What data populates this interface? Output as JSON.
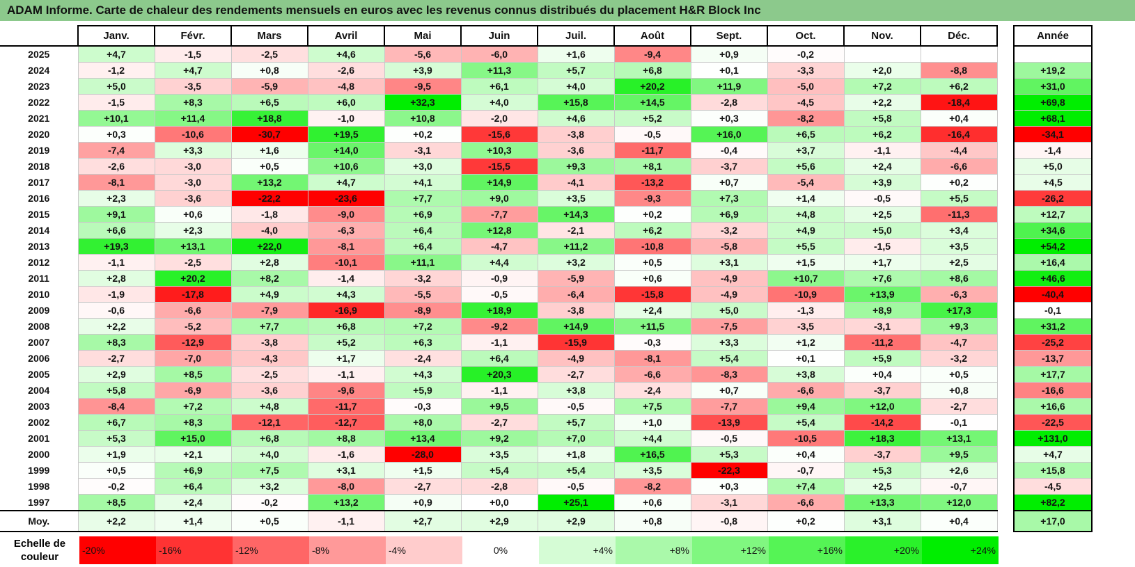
{
  "title": "ADAM Informe. Carte de chaleur des rendements mensuels en euros avec les revenus connus distribués du placement H&R Block Inc",
  "months": [
    "Janv.",
    "Févr.",
    "Mars",
    "Avril",
    "Mai",
    "Juin",
    "Juil.",
    "Août",
    "Sept.",
    "Oct.",
    "Nov.",
    "Déc."
  ],
  "year_header": "Année",
  "rows": [
    {
      "year": "2025",
      "m": [
        "+4,7",
        "-1,5",
        "-2,5",
        "+4,6",
        "-5,6",
        "-6,0",
        "+1,6",
        "-9,4",
        "+0,9",
        "-0,2",
        "",
        ""
      ],
      "total": ""
    },
    {
      "year": "2024",
      "m": [
        "-1,2",
        "+4,7",
        "+0,8",
        "-2,6",
        "+3,9",
        "+11,3",
        "+5,7",
        "+6,8",
        "+0,1",
        "-3,3",
        "+2,0",
        "-8,8"
      ],
      "total": "+19,2"
    },
    {
      "year": "2023",
      "m": [
        "+5,0",
        "-3,5",
        "-5,9",
        "-4,8",
        "-9,5",
        "+6,1",
        "+4,0",
        "+20,2",
        "+11,9",
        "-5,0",
        "+7,2",
        "+6,2"
      ],
      "total": "+31,0"
    },
    {
      "year": "2022",
      "m": [
        "-1,5",
        "+8,3",
        "+6,5",
        "+6,0",
        "+32,3",
        "+4,0",
        "+15,8",
        "+14,5",
        "-2,8",
        "-4,5",
        "+2,2",
        "-18,4"
      ],
      "total": "+69,8"
    },
    {
      "year": "2021",
      "m": [
        "+10,1",
        "+11,4",
        "+18,8",
        "-1,0",
        "+10,8",
        "-2,0",
        "+4,6",
        "+5,2",
        "+0,3",
        "-8,2",
        "+5,8",
        "+0,4"
      ],
      "total": "+68,1"
    },
    {
      "year": "2020",
      "m": [
        "+0,3",
        "-10,6",
        "-30,7",
        "+19,5",
        "+0,2",
        "-15,6",
        "-3,8",
        "-0,5",
        "+16,0",
        "+6,5",
        "+6,2",
        "-16,4"
      ],
      "total": "-34,1"
    },
    {
      "year": "2019",
      "m": [
        "-7,4",
        "+3,3",
        "+1,6",
        "+14,0",
        "-3,1",
        "+10,3",
        "-3,6",
        "-11,7",
        "-0,4",
        "+3,7",
        "-1,1",
        "-4,4"
      ],
      "total": "-1,4"
    },
    {
      "year": "2018",
      "m": [
        "-2,6",
        "-3,0",
        "+0,5",
        "+10,6",
        "+3,0",
        "-15,5",
        "+9,3",
        "+8,1",
        "-3,7",
        "+5,6",
        "+2,4",
        "-6,6"
      ],
      "total": "+5,0"
    },
    {
      "year": "2017",
      "m": [
        "-8,1",
        "-3,0",
        "+13,2",
        "+4,7",
        "+4,1",
        "+14,9",
        "-4,1",
        "-13,2",
        "+0,7",
        "-5,4",
        "+3,9",
        "+0,2"
      ],
      "total": "+4,5"
    },
    {
      "year": "2016",
      "m": [
        "+2,3",
        "-3,6",
        "-22,2",
        "-23,6",
        "+7,7",
        "+9,0",
        "+3,5",
        "-9,3",
        "+7,3",
        "+1,4",
        "-0,5",
        "+5,5"
      ],
      "total": "-26,2"
    },
    {
      "year": "2015",
      "m": [
        "+9,1",
        "+0,6",
        "-1,8",
        "-9,0",
        "+6,9",
        "-7,7",
        "+14,3",
        "+0,2",
        "+6,9",
        "+4,8",
        "+2,5",
        "-11,3"
      ],
      "total": "+12,7"
    },
    {
      "year": "2014",
      "m": [
        "+6,6",
        "+2,3",
        "-4,0",
        "-6,3",
        "+6,4",
        "+12,8",
        "-2,1",
        "+6,2",
        "-3,2",
        "+4,9",
        "+5,0",
        "+3,4"
      ],
      "total": "+34,6"
    },
    {
      "year": "2013",
      "m": [
        "+19,3",
        "+13,1",
        "+22,0",
        "-8,1",
        "+6,4",
        "-4,7",
        "+11,2",
        "-10,8",
        "-5,8",
        "+5,5",
        "-1,5",
        "+3,5"
      ],
      "total": "+54,2"
    },
    {
      "year": "2012",
      "m": [
        "-1,1",
        "-2,5",
        "+2,8",
        "-10,1",
        "+11,1",
        "+4,4",
        "+3,2",
        "+0,5",
        "+3,1",
        "+1,5",
        "+1,7",
        "+2,5"
      ],
      "total": "+16,4"
    },
    {
      "year": "2011",
      "m": [
        "+2,8",
        "+20,2",
        "+8,2",
        "-1,4",
        "-3,2",
        "-0,9",
        "-5,9",
        "+0,6",
        "-4,9",
        "+10,7",
        "+7,6",
        "+8,6"
      ],
      "total": "+46,6"
    },
    {
      "year": "2010",
      "m": [
        "-1,9",
        "-17,8",
        "+4,9",
        "+4,3",
        "-5,5",
        "-0,5",
        "-6,4",
        "-15,8",
        "-4,9",
        "-10,9",
        "+13,9",
        "-6,3"
      ],
      "total": "-40,4"
    },
    {
      "year": "2009",
      "m": [
        "-0,6",
        "-6,6",
        "-7,9",
        "-16,9",
        "-8,9",
        "+18,9",
        "-3,8",
        "+2,4",
        "+5,0",
        "-1,3",
        "+8,9",
        "+17,3"
      ],
      "total": "-0,1"
    },
    {
      "year": "2008",
      "m": [
        "+2,2",
        "-5,2",
        "+7,7",
        "+6,8",
        "+7,2",
        "-9,2",
        "+14,9",
        "+11,5",
        "-7,5",
        "-3,5",
        "-3,1",
        "+9,3"
      ],
      "total": "+31,2"
    },
    {
      "year": "2007",
      "m": [
        "+8,3",
        "-12,9",
        "-3,8",
        "+5,2",
        "+6,3",
        "-1,1",
        "-15,9",
        "-0,3",
        "+3,3",
        "+1,2",
        "-11,2",
        "-4,7"
      ],
      "total": "-25,2"
    },
    {
      "year": "2006",
      "m": [
        "-2,7",
        "-7,0",
        "-4,3",
        "+1,7",
        "-2,4",
        "+6,4",
        "-4,9",
        "-8,1",
        "+5,4",
        "+0,1",
        "+5,9",
        "-3,2"
      ],
      "total": "-13,7"
    },
    {
      "year": "2005",
      "m": [
        "+2,9",
        "+8,5",
        "-2,5",
        "-1,1",
        "+4,3",
        "+20,3",
        "-2,7",
        "-6,6",
        "-8,3",
        "+3,8",
        "+0,4",
        "+0,5"
      ],
      "total": "+17,7"
    },
    {
      "year": "2004",
      "m": [
        "+5,8",
        "-6,9",
        "-3,6",
        "-9,6",
        "+5,9",
        "-1,1",
        "+3,8",
        "-2,4",
        "+0,7",
        "-6,6",
        "-3,7",
        "+0,8"
      ],
      "total": "-16,6"
    },
    {
      "year": "2003",
      "m": [
        "-8,4",
        "+7,2",
        "+4,8",
        "-11,7",
        "-0,3",
        "+9,5",
        "-0,5",
        "+7,5",
        "-7,7",
        "+9,4",
        "+12,0",
        "-2,7"
      ],
      "total": "+16,6"
    },
    {
      "year": "2002",
      "m": [
        "+6,7",
        "+8,3",
        "-12,1",
        "-12,7",
        "+8,0",
        "-2,7",
        "+5,7",
        "+1,0",
        "-13,9",
        "+5,4",
        "-14,2",
        "-0,1"
      ],
      "total": "-22,5"
    },
    {
      "year": "2001",
      "m": [
        "+5,3",
        "+15,0",
        "+6,8",
        "+8,8",
        "+13,4",
        "+9,2",
        "+7,0",
        "+4,4",
        "-0,5",
        "-10,5",
        "+18,3",
        "+13,1"
      ],
      "total": "+131,0"
    },
    {
      "year": "2000",
      "m": [
        "+1,9",
        "+2,1",
        "+4,0",
        "-1,6",
        "-28,0",
        "+3,5",
        "+1,8",
        "+16,5",
        "+5,3",
        "+0,4",
        "-3,7",
        "+9,5"
      ],
      "total": "+4,7"
    },
    {
      "year": "1999",
      "m": [
        "+0,5",
        "+6,9",
        "+7,5",
        "+3,1",
        "+1,5",
        "+5,4",
        "+5,4",
        "+3,5",
        "-22,3",
        "-0,7",
        "+5,3",
        "+2,6"
      ],
      "total": "+15,8"
    },
    {
      "year": "1998",
      "m": [
        "-0,2",
        "+6,4",
        "+3,2",
        "-8,0",
        "-2,7",
        "-2,8",
        "-0,5",
        "-8,2",
        "+0,3",
        "+7,4",
        "+2,5",
        "-0,7"
      ],
      "total": "-4,5"
    },
    {
      "year": "1997",
      "m": [
        "+8,5",
        "+2,4",
        "-0,2",
        "+13,2",
        "+0,9",
        "+0,0",
        "+25,1",
        "+0,6",
        "-3,1",
        "-6,6",
        "+13,3",
        "+12,0"
      ],
      "total": "+82,2"
    }
  ],
  "average": {
    "label": "Moy.",
    "m": [
      "+2,2",
      "+1,4",
      "+0,5",
      "-1,1",
      "+2,7",
      "+2,9",
      "+2,9",
      "+0,8",
      "-0,8",
      "+0,2",
      "+3,1",
      "+0,4"
    ],
    "total": "+17,0"
  },
  "legend": {
    "label_line1": "Echelle de",
    "label_line2": "couleur",
    "steps": [
      "-20%",
      "-16%",
      "-12%",
      "-8%",
      "-4%",
      "0%",
      "+4%",
      "+8%",
      "+12%",
      "+16%",
      "+20%",
      "+24%"
    ],
    "step_values": [
      -20,
      -16,
      -12,
      -8,
      -4,
      0,
      4,
      8,
      12,
      16,
      20,
      24
    ]
  },
  "colors": {
    "title_bg": "#8cc98c",
    "neutral": "#ffffff",
    "negative_max": "#ff0000",
    "positive_max": "#00ee00"
  }
}
